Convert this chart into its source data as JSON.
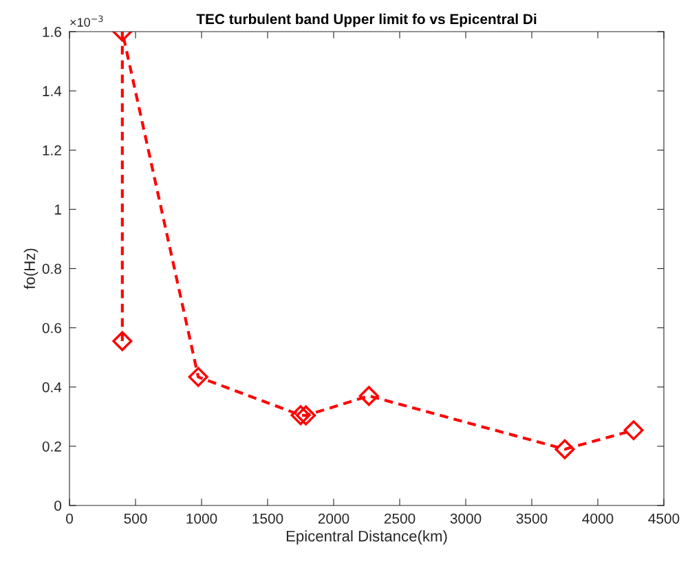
{
  "chart_data": {
    "type": "line",
    "title": "TEC turbulent band Upper limit fo vs Epicentral Di",
    "xlabel": "Epicentral Distance(km)",
    "ylabel": "fo(Hz)",
    "annotations": [
      "×10$^{−3}$"
    ],
    "series": [
      {
        "color": "#ff0000",
        "x": [
          400,
          400,
          975,
          1750,
          1790,
          2267,
          3750,
          4271
        ],
        "values": [
          0.555,
          1.6,
          0.434,
          0.305,
          0.304,
          0.37,
          0.19,
          0.254
        ]
      }
    ],
    "xlim": [
      0,
      4500
    ],
    "xticks": [
      0,
      500,
      1000,
      1500,
      2000,
      2500,
      3000,
      3500,
      4000,
      4500
    ],
    "ylim": [
      0,
      1.6
    ],
    "yticks": [
      0,
      0.2,
      0.4,
      0.6,
      0.8,
      1,
      1.2,
      1.4,
      1.6
    ],
    "grid": false,
    "legend": false,
    "marker": "diamond",
    "line_style": "dashed"
  }
}
